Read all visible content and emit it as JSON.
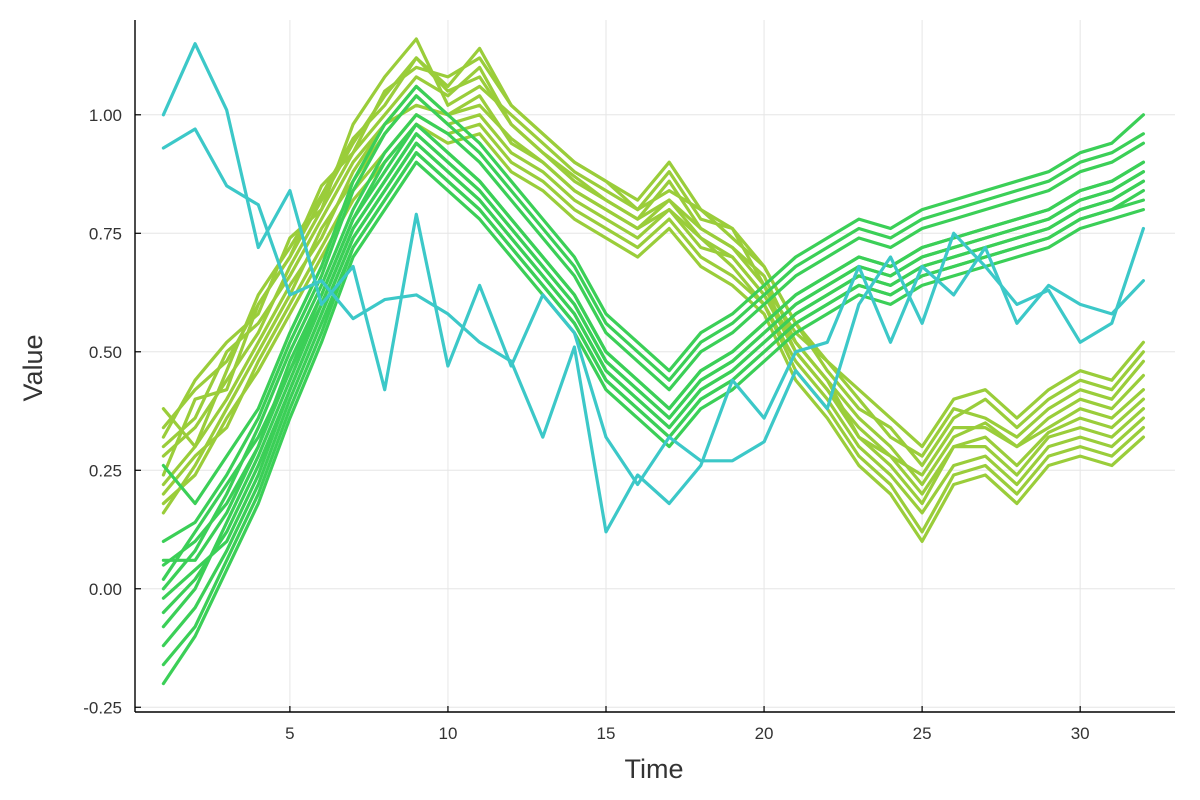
{
  "chart_data": {
    "type": "line",
    "title": "",
    "xlabel": "Time",
    "ylabel": "Value",
    "xlim": [
      0.1,
      33
    ],
    "ylim": [
      -0.26,
      1.2
    ],
    "x_ticks": [
      5,
      10,
      15,
      20,
      25,
      30
    ],
    "x_tick_labels": [
      "5",
      "10",
      "15",
      "20",
      "25",
      "30"
    ],
    "y_ticks": [
      -0.25,
      0,
      0.25,
      0.5,
      0.75,
      1.0
    ],
    "y_tick_labels": [
      "-0.25",
      "0.00",
      "0.25",
      "0.50",
      "0.75",
      "1.00"
    ],
    "grid": true,
    "legend": "none",
    "x": [
      1,
      2,
      3,
      4,
      5,
      6,
      7,
      8,
      9,
      10,
      11,
      12,
      13,
      14,
      15,
      16,
      17,
      18,
      19,
      20,
      21,
      22,
      23,
      24,
      25,
      26,
      27,
      28,
      29,
      30,
      31,
      32
    ],
    "colors": {
      "group_a": "#9acd3a",
      "group_b": "#3bcf57",
      "group_c": "#3cc8c8"
    },
    "series": [
      {
        "group": "group_a",
        "values": [
          0.38,
          0.3,
          0.46,
          0.62,
          0.72,
          0.83,
          0.95,
          1.02,
          1.12,
          1.05,
          1.08,
          0.98,
          0.92,
          0.87,
          0.82,
          0.78,
          0.86,
          0.76,
          0.72,
          0.66,
          0.52,
          0.44,
          0.36,
          0.3,
          0.22,
          0.32,
          0.35,
          0.3,
          0.36,
          0.4,
          0.38,
          0.45
        ]
      },
      {
        "group": "group_a",
        "values": [
          0.3,
          0.36,
          0.5,
          0.56,
          0.66,
          0.78,
          0.9,
          0.98,
          1.06,
          1.0,
          1.02,
          0.95,
          0.9,
          0.84,
          0.8,
          0.76,
          0.8,
          0.72,
          0.7,
          0.62,
          0.5,
          0.42,
          0.32,
          0.28,
          0.2,
          0.3,
          0.32,
          0.26,
          0.33,
          0.36,
          0.34,
          0.4
        ]
      },
      {
        "group": "group_a",
        "values": [
          0.24,
          0.4,
          0.42,
          0.6,
          0.7,
          0.85,
          0.92,
          1.05,
          1.1,
          1.08,
          1.12,
          1.02,
          0.96,
          0.9,
          0.86,
          0.8,
          0.84,
          0.8,
          0.74,
          0.68,
          0.56,
          0.46,
          0.38,
          0.34,
          0.26,
          0.36,
          0.4,
          0.34,
          0.4,
          0.44,
          0.42,
          0.5
        ]
      },
      {
        "group": "group_a",
        "values": [
          0.2,
          0.28,
          0.34,
          0.48,
          0.6,
          0.72,
          0.84,
          0.92,
          1.0,
          0.96,
          0.98,
          0.9,
          0.86,
          0.8,
          0.76,
          0.72,
          0.78,
          0.7,
          0.66,
          0.6,
          0.48,
          0.4,
          0.3,
          0.24,
          0.16,
          0.26,
          0.28,
          0.22,
          0.3,
          0.32,
          0.3,
          0.36
        ]
      },
      {
        "group": "group_a",
        "values": [
          0.32,
          0.44,
          0.52,
          0.58,
          0.74,
          0.8,
          0.98,
          1.08,
          1.16,
          1.02,
          1.06,
          1.0,
          0.94,
          0.88,
          0.84,
          0.8,
          0.88,
          0.78,
          0.76,
          0.64,
          0.54,
          0.48,
          0.4,
          0.32,
          0.28,
          0.38,
          0.36,
          0.32,
          0.38,
          0.42,
          0.4,
          0.48
        ]
      },
      {
        "group": "group_a",
        "values": [
          0.16,
          0.26,
          0.38,
          0.5,
          0.62,
          0.76,
          0.86,
          0.96,
          1.04,
          0.98,
          1.0,
          0.92,
          0.88,
          0.82,
          0.78,
          0.74,
          0.8,
          0.74,
          0.68,
          0.6,
          0.46,
          0.38,
          0.28,
          0.22,
          0.12,
          0.24,
          0.26,
          0.2,
          0.28,
          0.3,
          0.28,
          0.34
        ]
      },
      {
        "group": "group_a",
        "values": [
          0.28,
          0.34,
          0.44,
          0.54,
          0.68,
          0.8,
          0.92,
          1.0,
          1.08,
          1.04,
          1.1,
          0.98,
          0.92,
          0.86,
          0.82,
          0.78,
          0.82,
          0.76,
          0.72,
          0.64,
          0.5,
          0.42,
          0.34,
          0.28,
          0.24,
          0.34,
          0.34,
          0.3,
          0.34,
          0.38,
          0.36,
          0.42
        ]
      },
      {
        "group": "group_a",
        "values": [
          0.22,
          0.3,
          0.4,
          0.52,
          0.64,
          0.74,
          0.88,
          0.98,
          1.02,
          1.0,
          1.04,
          0.94,
          0.9,
          0.84,
          0.8,
          0.76,
          0.82,
          0.74,
          0.7,
          0.62,
          0.52,
          0.44,
          0.32,
          0.26,
          0.18,
          0.3,
          0.3,
          0.24,
          0.32,
          0.34,
          0.32,
          0.38
        ]
      },
      {
        "group": "group_a",
        "values": [
          0.34,
          0.42,
          0.48,
          0.6,
          0.7,
          0.82,
          0.94,
          1.04,
          1.12,
          1.06,
          1.14,
          1.02,
          0.96,
          0.9,
          0.86,
          0.82,
          0.9,
          0.8,
          0.76,
          0.68,
          0.56,
          0.48,
          0.42,
          0.36,
          0.3,
          0.4,
          0.42,
          0.36,
          0.42,
          0.46,
          0.44,
          0.52
        ]
      },
      {
        "group": "group_a",
        "values": [
          0.18,
          0.24,
          0.36,
          0.46,
          0.58,
          0.7,
          0.82,
          0.9,
          0.98,
          0.94,
          0.96,
          0.88,
          0.84,
          0.78,
          0.74,
          0.7,
          0.76,
          0.68,
          0.64,
          0.58,
          0.44,
          0.36,
          0.26,
          0.2,
          0.1,
          0.22,
          0.24,
          0.18,
          0.26,
          0.28,
          0.26,
          0.32
        ]
      },
      {
        "group": "group_b",
        "values": [
          0.05,
          0.1,
          0.18,
          0.3,
          0.48,
          0.62,
          0.78,
          0.88,
          0.98,
          0.92,
          0.86,
          0.78,
          0.7,
          0.62,
          0.5,
          0.44,
          0.38,
          0.46,
          0.5,
          0.56,
          0.62,
          0.66,
          0.7,
          0.68,
          0.72,
          0.74,
          0.76,
          0.78,
          0.8,
          0.84,
          0.86,
          0.9
        ]
      },
      {
        "group": "group_b",
        "values": [
          -0.05,
          0.02,
          0.12,
          0.26,
          0.42,
          0.58,
          0.74,
          0.84,
          0.94,
          0.88,
          0.82,
          0.74,
          0.66,
          0.58,
          0.46,
          0.4,
          0.34,
          0.42,
          0.46,
          0.52,
          0.58,
          0.62,
          0.66,
          0.64,
          0.68,
          0.7,
          0.72,
          0.74,
          0.76,
          0.8,
          0.82,
          0.86
        ]
      },
      {
        "group": "group_b",
        "values": [
          0.0,
          0.08,
          0.2,
          0.34,
          0.5,
          0.64,
          0.8,
          0.92,
          1.0,
          0.96,
          0.9,
          0.82,
          0.74,
          0.66,
          0.54,
          0.48,
          0.42,
          0.5,
          0.54,
          0.6,
          0.66,
          0.7,
          0.74,
          0.72,
          0.76,
          0.78,
          0.8,
          0.82,
          0.84,
          0.88,
          0.9,
          0.94
        ]
      },
      {
        "group": "group_b",
        "values": [
          -0.12,
          -0.04,
          0.08,
          0.22,
          0.4,
          0.56,
          0.72,
          0.82,
          0.92,
          0.86,
          0.8,
          0.72,
          0.64,
          0.56,
          0.44,
          0.38,
          0.32,
          0.4,
          0.44,
          0.5,
          0.56,
          0.6,
          0.64,
          0.62,
          0.66,
          0.68,
          0.7,
          0.72,
          0.74,
          0.78,
          0.8,
          0.84
        ]
      },
      {
        "group": "group_b",
        "values": [
          0.1,
          0.14,
          0.24,
          0.36,
          0.52,
          0.66,
          0.84,
          0.96,
          1.04,
          0.98,
          0.92,
          0.84,
          0.76,
          0.68,
          0.56,
          0.5,
          0.44,
          0.52,
          0.56,
          0.62,
          0.68,
          0.72,
          0.76,
          0.74,
          0.78,
          0.8,
          0.82,
          0.84,
          0.86,
          0.9,
          0.92,
          0.96
        ]
      },
      {
        "group": "group_b",
        "values": [
          -0.2,
          -0.1,
          0.04,
          0.18,
          0.36,
          0.52,
          0.7,
          0.8,
          0.9,
          0.84,
          0.78,
          0.7,
          0.62,
          0.54,
          0.42,
          0.36,
          0.3,
          0.38,
          0.42,
          0.48,
          0.54,
          0.58,
          0.62,
          0.6,
          0.64,
          0.66,
          0.68,
          0.7,
          0.72,
          0.76,
          0.78,
          0.8
        ]
      },
      {
        "group": "group_b",
        "values": [
          0.02,
          0.12,
          0.22,
          0.32,
          0.46,
          0.6,
          0.76,
          0.86,
          0.96,
          0.9,
          0.84,
          0.76,
          0.68,
          0.6,
          0.48,
          0.42,
          0.36,
          0.44,
          0.48,
          0.54,
          0.6,
          0.64,
          0.68,
          0.66,
          0.7,
          0.72,
          0.74,
          0.76,
          0.78,
          0.82,
          0.84,
          0.88
        ]
      },
      {
        "group": "group_b",
        "values": [
          -0.08,
          0.0,
          0.14,
          0.28,
          0.44,
          0.6,
          0.76,
          0.86,
          0.96,
          0.9,
          0.84,
          0.76,
          0.68,
          0.6,
          0.48,
          0.42,
          0.36,
          0.44,
          0.48,
          0.54,
          0.6,
          0.64,
          0.68,
          0.66,
          0.7,
          0.72,
          0.74,
          0.76,
          0.78,
          0.82,
          0.84,
          0.88
        ]
      },
      {
        "group": "group_b",
        "values": [
          0.26,
          0.18,
          0.28,
          0.38,
          0.54,
          0.68,
          0.86,
          0.98,
          1.06,
          1.0,
          0.94,
          0.86,
          0.78,
          0.7,
          0.58,
          0.52,
          0.46,
          0.54,
          0.58,
          0.64,
          0.7,
          0.74,
          0.78,
          0.76,
          0.8,
          0.82,
          0.84,
          0.86,
          0.88,
          0.92,
          0.94,
          1.0
        ]
      },
      {
        "group": "group_b",
        "values": [
          -0.16,
          -0.08,
          0.06,
          0.2,
          0.38,
          0.54,
          0.72,
          0.82,
          0.92,
          0.86,
          0.8,
          0.72,
          0.64,
          0.56,
          0.44,
          0.38,
          0.32,
          0.4,
          0.44,
          0.5,
          0.56,
          0.6,
          0.64,
          0.62,
          0.66,
          0.68,
          0.7,
          0.72,
          0.74,
          0.78,
          0.8,
          0.82
        ]
      },
      {
        "group": "group_b",
        "values": [
          0.06,
          0.06,
          0.16,
          0.3,
          0.46,
          0.62,
          0.78,
          0.9,
          0.98,
          0.92,
          0.86,
          0.78,
          0.7,
          0.62,
          0.5,
          0.44,
          0.38,
          0.46,
          0.5,
          0.56,
          0.62,
          0.66,
          0.7,
          0.68,
          0.72,
          0.74,
          0.76,
          0.78,
          0.8,
          0.84,
          0.86,
          0.9
        ]
      },
      {
        "group": "group_b",
        "values": [
          -0.02,
          0.04,
          0.1,
          0.24,
          0.42,
          0.58,
          0.74,
          0.84,
          0.94,
          0.88,
          0.82,
          0.74,
          0.66,
          0.58,
          0.46,
          0.4,
          0.34,
          0.42,
          0.46,
          0.52,
          0.58,
          0.62,
          0.66,
          0.64,
          0.68,
          0.7,
          0.72,
          0.74,
          0.76,
          0.8,
          0.82,
          0.86
        ]
      },
      {
        "group": "group_c",
        "values": [
          1.0,
          1.15,
          1.01,
          0.72,
          0.84,
          0.6,
          0.68,
          0.42,
          0.79,
          0.47,
          0.64,
          0.47,
          0.62,
          0.54,
          0.32,
          0.22,
          0.32,
          0.27,
          0.27,
          0.31,
          0.46,
          0.38,
          0.6,
          0.7,
          0.56,
          0.75,
          0.68,
          0.6,
          0.63,
          0.52,
          0.56,
          0.76
        ]
      },
      {
        "group": "group_c",
        "values": [
          0.93,
          0.97,
          0.85,
          0.81,
          0.62,
          0.65,
          0.57,
          0.61,
          0.62,
          0.58,
          0.52,
          0.48,
          0.32,
          0.51,
          0.12,
          0.24,
          0.18,
          0.26,
          0.44,
          0.36,
          0.5,
          0.52,
          0.68,
          0.52,
          0.68,
          0.62,
          0.72,
          0.56,
          0.64,
          0.6,
          0.58,
          0.65
        ]
      }
    ]
  }
}
